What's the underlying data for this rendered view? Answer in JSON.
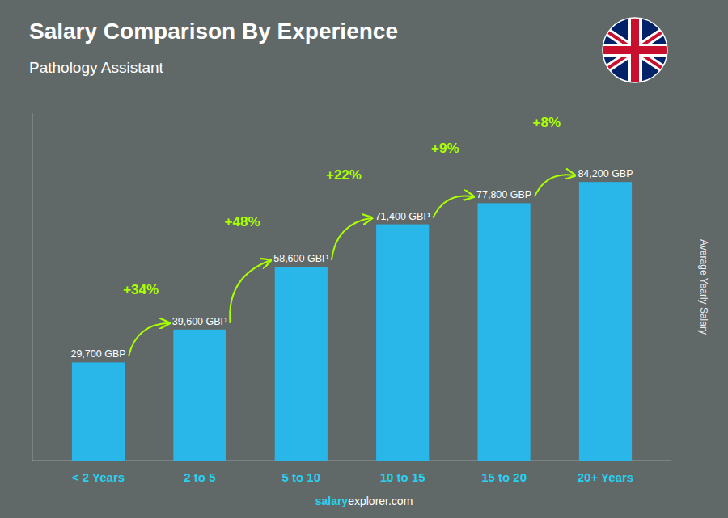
{
  "chart_data": {
    "type": "bar",
    "title": "Salary Comparison By Experience",
    "subtitle": "Pathology Assistant",
    "categories": [
      "< 2 Years",
      "2 to 5",
      "5 to 10",
      "10 to 15",
      "15 to 20",
      "20+ Years"
    ],
    "values": [
      29700,
      39600,
      58600,
      71400,
      77800,
      84200
    ],
    "value_labels": [
      "29,700 GBP",
      "39,600 GBP",
      "58,600 GBP",
      "71,400 GBP",
      "77,800 GBP",
      "84,200 GBP"
    ],
    "data_labels": true,
    "annotations": [
      "+34%",
      "+48%",
      "+22%",
      "+9%",
      "+8%"
    ],
    "color": "#29b6e8",
    "ylabel": "Average Yearly Salary",
    "footer": [
      "salary",
      "explorer.com"
    ],
    "ylim": [
      0,
      105000
    ],
    "tick_labels": "x",
    "grid": false
  }
}
